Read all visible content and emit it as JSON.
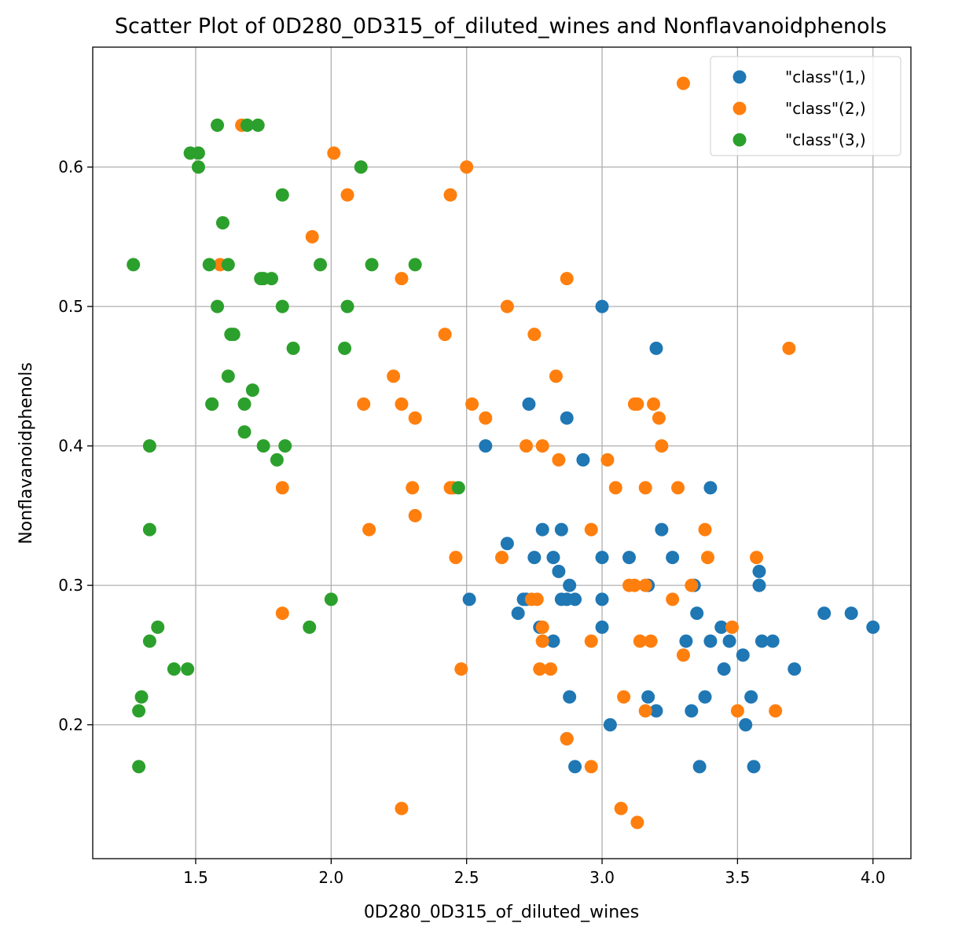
{
  "chart_data": {
    "type": "scatter",
    "title": "Scatter Plot of 0D280_0D315_of_diluted_wines and Nonflavanoidphenols",
    "xlabel": "0D280_0D315_of_diluted_wines",
    "ylabel": "Nonflavanoidphenols",
    "xlim": [
      1.12,
      4.14
    ],
    "ylim": [
      0.104,
      0.686
    ],
    "xticks": [
      1.5,
      2.0,
      2.5,
      3.0,
      3.5,
      4.0
    ],
    "xtick_labels": [
      "1.5",
      "2.0",
      "2.5",
      "3.0",
      "3.5",
      "4.0"
    ],
    "yticks": [
      0.2,
      0.3,
      0.4,
      0.5,
      0.6
    ],
    "ytick_labels": [
      "0.2",
      "0.3",
      "0.4",
      "0.5",
      "0.6"
    ],
    "grid": true,
    "legend_position": "top-right",
    "series": [
      {
        "name": "\"class\"(1,)",
        "color": "#1f77b4",
        "x": [
          3.0,
          3.2,
          2.73,
          2.87,
          2.57,
          2.93,
          3.4,
          2.78,
          2.85,
          3.22,
          2.65,
          2.75,
          2.82,
          3.0,
          3.1,
          3.26,
          2.84,
          2.72,
          2.88,
          3.17,
          3.34,
          3.58,
          3.0,
          2.51,
          2.71,
          2.85,
          2.87,
          2.9,
          2.69,
          3.35,
          3.82,
          3.92,
          4.0,
          2.77,
          2.82,
          3.31,
          3.44,
          3.4,
          3.47,
          3.59,
          3.63,
          3.52,
          3.45,
          3.71,
          3.38,
          3.17,
          2.88,
          3.55,
          3.2,
          3.33,
          3.03,
          3.53,
          2.87,
          2.9,
          3.36,
          3.56,
          3.58,
          3.0
        ],
        "y": [
          0.5,
          0.47,
          0.43,
          0.42,
          0.4,
          0.39,
          0.37,
          0.34,
          0.34,
          0.34,
          0.33,
          0.32,
          0.32,
          0.32,
          0.32,
          0.32,
          0.31,
          0.29,
          0.3,
          0.3,
          0.3,
          0.31,
          0.29,
          0.29,
          0.29,
          0.29,
          0.29,
          0.29,
          0.28,
          0.28,
          0.28,
          0.28,
          0.27,
          0.27,
          0.26,
          0.26,
          0.27,
          0.26,
          0.26,
          0.26,
          0.26,
          0.25,
          0.24,
          0.24,
          0.22,
          0.22,
          0.22,
          0.22,
          0.21,
          0.21,
          0.2,
          0.2,
          0.19,
          0.17,
          0.17,
          0.17,
          0.3,
          0.27
        ]
      },
      {
        "name": "\"class\"(2,)",
        "color": "#ff7f0e",
        "x": [
          3.3,
          1.67,
          2.01,
          2.5,
          2.06,
          2.44,
          1.93,
          1.59,
          2.26,
          2.87,
          2.65,
          3.69,
          2.42,
          2.75,
          2.23,
          2.83,
          2.12,
          2.26,
          2.52,
          3.12,
          3.13,
          3.19,
          2.31,
          2.57,
          3.21,
          2.72,
          2.78,
          3.22,
          2.84,
          3.02,
          1.82,
          2.3,
          2.44,
          3.05,
          3.16,
          3.28,
          2.31,
          2.14,
          2.96,
          3.38,
          2.46,
          2.63,
          3.39,
          3.57,
          3.1,
          3.12,
          3.16,
          3.33,
          2.76,
          2.78,
          3.26,
          1.82,
          2.78,
          2.78,
          2.96,
          3.14,
          3.18,
          3.48,
          2.77,
          2.81,
          3.3,
          2.48,
          3.08,
          3.16,
          3.5,
          3.64,
          2.87,
          2.96,
          2.26,
          3.07,
          3.13,
          2.45,
          2.74
        ],
        "y": [
          0.66,
          0.63,
          0.61,
          0.6,
          0.58,
          0.58,
          0.55,
          0.53,
          0.52,
          0.52,
          0.5,
          0.47,
          0.48,
          0.48,
          0.45,
          0.45,
          0.43,
          0.43,
          0.43,
          0.43,
          0.43,
          0.43,
          0.42,
          0.42,
          0.42,
          0.4,
          0.4,
          0.4,
          0.39,
          0.39,
          0.37,
          0.37,
          0.37,
          0.37,
          0.37,
          0.37,
          0.35,
          0.34,
          0.34,
          0.34,
          0.32,
          0.32,
          0.32,
          0.32,
          0.3,
          0.3,
          0.3,
          0.3,
          0.29,
          0.27,
          0.29,
          0.28,
          0.26,
          0.26,
          0.26,
          0.26,
          0.26,
          0.27,
          0.24,
          0.24,
          0.25,
          0.24,
          0.22,
          0.21,
          0.21,
          0.21,
          0.19,
          0.17,
          0.14,
          0.14,
          0.13,
          0.37,
          0.29
        ]
      },
      {
        "name": "\"class\"(3,)",
        "color": "#2ca02c",
        "x": [
          1.58,
          1.69,
          1.73,
          1.48,
          1.51,
          1.51,
          2.11,
          1.82,
          1.6,
          1.27,
          1.55,
          1.62,
          1.74,
          1.75,
          1.78,
          1.96,
          2.15,
          2.31,
          1.58,
          1.82,
          2.06,
          1.63,
          1.64,
          1.86,
          2.05,
          1.62,
          1.71,
          1.56,
          1.56,
          1.68,
          1.68,
          1.33,
          1.75,
          1.83,
          1.8,
          2.47,
          1.33,
          2.0,
          1.36,
          1.92,
          1.33,
          1.42,
          1.47,
          1.3,
          1.29,
          1.29
        ],
        "y": [
          0.63,
          0.63,
          0.63,
          0.61,
          0.61,
          0.6,
          0.6,
          0.58,
          0.56,
          0.53,
          0.53,
          0.53,
          0.52,
          0.52,
          0.52,
          0.53,
          0.53,
          0.53,
          0.5,
          0.5,
          0.5,
          0.48,
          0.48,
          0.47,
          0.47,
          0.45,
          0.44,
          0.43,
          0.43,
          0.43,
          0.41,
          0.4,
          0.4,
          0.4,
          0.39,
          0.37,
          0.34,
          0.29,
          0.27,
          0.27,
          0.26,
          0.24,
          0.24,
          0.22,
          0.21,
          0.17
        ]
      }
    ]
  }
}
